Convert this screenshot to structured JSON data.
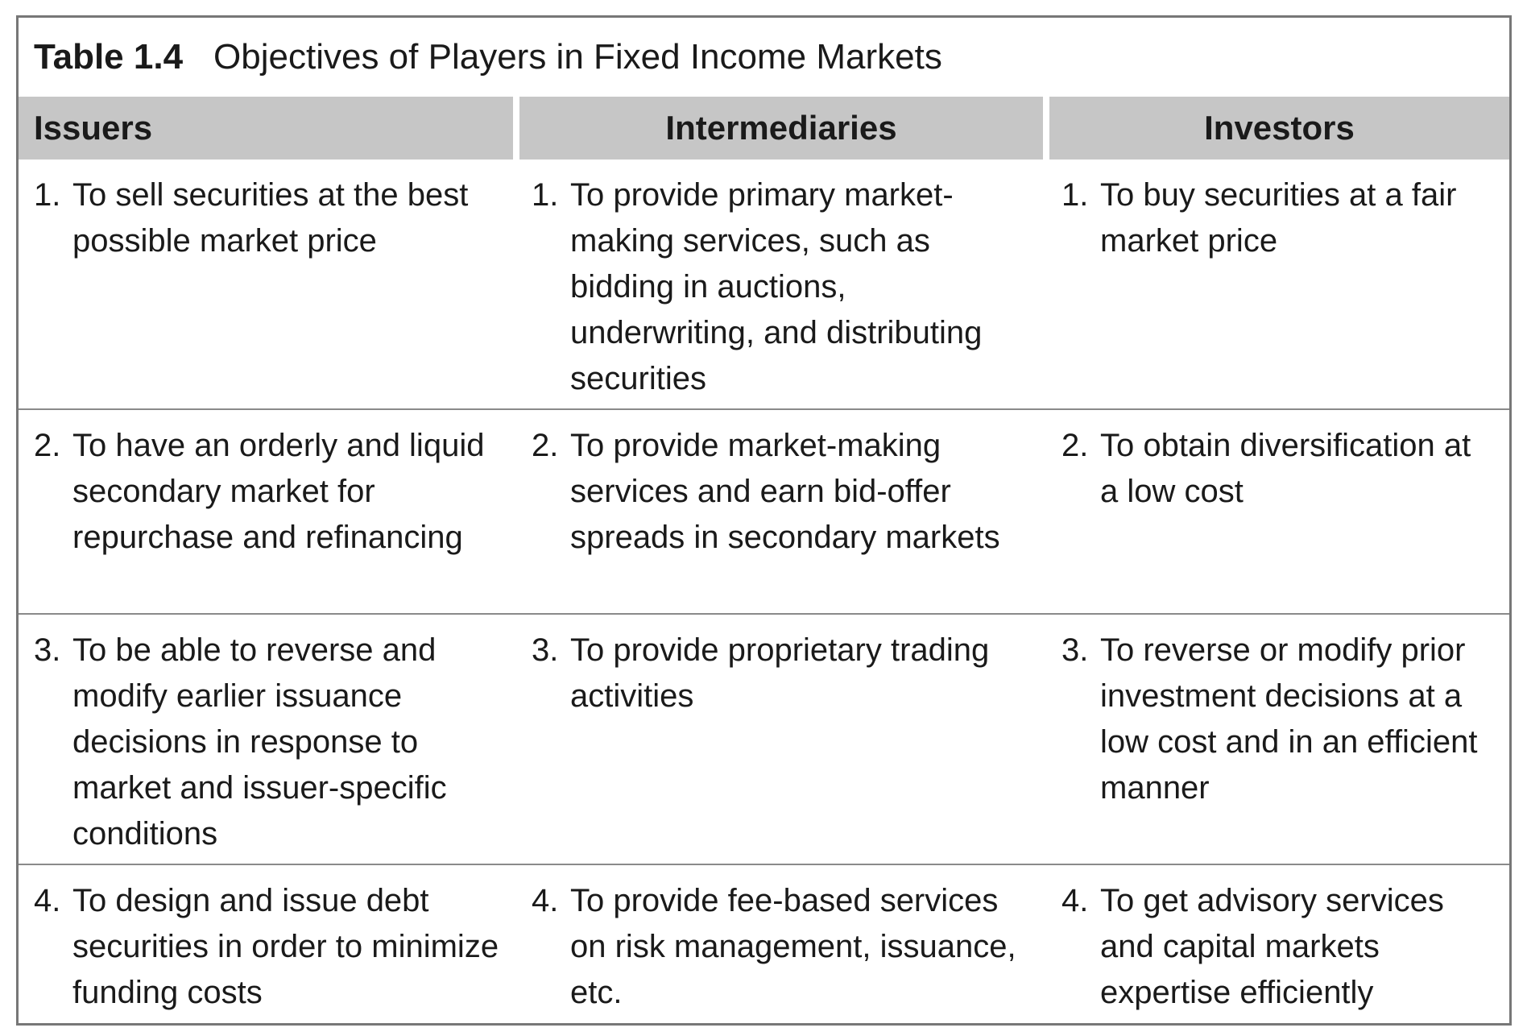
{
  "caption": {
    "number": "Table 1.4",
    "title": "Objectives of Players in Fixed Income Markets"
  },
  "headers": [
    "Issuers",
    "Intermediaries",
    "Investors"
  ],
  "rows": [
    [
      {
        "num": "1.",
        "text": "To sell securities at the best possible market price"
      },
      {
        "num": "1.",
        "text": "To provide primary market-making services, such as bidding in auctions, underwriting, and distributing securities"
      },
      {
        "num": "1.",
        "text": "To buy securities at a fair market price"
      }
    ],
    [
      {
        "num": "2.",
        "text": "To have an orderly and liquid secondary market for repurchase and refinancing"
      },
      {
        "num": "2.",
        "text": "To provide market-making services and earn bid-offer spreads in secondary markets"
      },
      {
        "num": "2.",
        "text": "To obtain diversification at a low cost"
      }
    ],
    [
      {
        "num": "3.",
        "text": "To be able to reverse and modify earlier issuance decisions in response to market and issuer-specific conditions"
      },
      {
        "num": "3.",
        "text": "To provide proprietary trading activities"
      },
      {
        "num": "3.",
        "text": "To reverse or modify prior investment decisions at a low cost and in an efficient manner"
      }
    ],
    [
      {
        "num": "4.",
        "text": "To design and issue debt securities in order to minimize funding costs"
      },
      {
        "num": "4.",
        "text": "To provide fee-based services on risk management, issuance, etc."
      },
      {
        "num": "4.",
        "text": "To get advisory services and capital markets expertise efficiently"
      }
    ]
  ]
}
